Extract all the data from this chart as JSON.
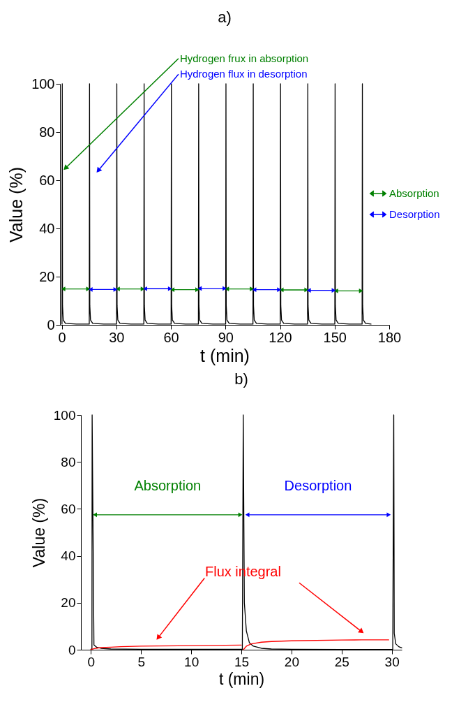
{
  "chart_data": [
    {
      "type": "line",
      "title": "a)",
      "xlabel": "t (min)",
      "ylabel": "Value (%)",
      "xlim": [
        -1,
        180
      ],
      "xticks": [
        0,
        30,
        60,
        90,
        120,
        150,
        180
      ],
      "ylim": [
        0,
        100
      ],
      "yticks": [
        0,
        20,
        40,
        60,
        80,
        100
      ],
      "legend": "right",
      "line_style": "solid",
      "annotations": [
        {
          "text": "Hydrogen frux in absorption",
          "x": 2,
          "y": 65
        },
        {
          "text": "Hydrogen flux in desorption",
          "x": 20,
          "y": 64
        }
      ],
      "series": [
        {
          "color": "#000000",
          "x": [
            0.1,
            0.25,
            0.4,
            0.8,
            2,
            8,
            15.1,
            15.25,
            15.4,
            15.8,
            17,
            23,
            30.1,
            30.25,
            30.4,
            30.8,
            32,
            38,
            45.1,
            45.25,
            45.4,
            45.8,
            47,
            53,
            60.1,
            60.25,
            60.4,
            60.8,
            62,
            68,
            75.1,
            75.25,
            75.4,
            75.8,
            77,
            83,
            90.1,
            90.25,
            90.4,
            90.8,
            92,
            98,
            105.1,
            105.25,
            105.4,
            105.8,
            107,
            113,
            120.1,
            120.25,
            120.4,
            120.8,
            122,
            128,
            135.1,
            135.25,
            135.4,
            135.8,
            137,
            143,
            150.1,
            150.25,
            150.4,
            150.8,
            152,
            158,
            165.1,
            165.25,
            165.4,
            165.8,
            167,
            170
          ],
          "values": [
            0.3,
            100,
            8,
            2,
            0.6,
            0.3,
            0.3,
            100,
            8,
            2,
            0.6,
            0.3,
            0.3,
            100,
            8,
            2,
            0.6,
            0.3,
            0.3,
            100,
            8,
            2,
            0.6,
            0.3,
            0.3,
            100,
            8,
            2,
            0.6,
            0.3,
            0.3,
            100,
            8,
            2,
            0.6,
            0.3,
            0.3,
            100,
            8,
            2,
            0.6,
            0.3,
            0.3,
            100,
            8,
            2,
            0.6,
            0.3,
            0.3,
            100,
            8,
            2,
            0.6,
            0.3,
            0.3,
            100,
            8,
            2,
            0.6,
            0.3,
            0.3,
            100,
            8,
            2,
            0.6,
            0.3,
            0.3,
            100,
            8,
            2,
            0.6,
            0.3
          ]
        },
        {
          "name": "Absorption",
          "color": "#008000",
          "marker": "triangle",
          "x": [
            0.8,
            14.5,
            null,
            30.8,
            44.5,
            null,
            60.8,
            74.5,
            null,
            90.8,
            104.5,
            null,
            120.8,
            134.5,
            null,
            150.8,
            164.5
          ],
          "values": [
            14.9,
            14.9,
            null,
            14.9,
            14.9,
            null,
            14.6,
            14.6,
            null,
            14.9,
            14.9,
            null,
            14.5,
            14.5,
            null,
            14.1,
            14.1
          ]
        },
        {
          "name": "Desorption",
          "color": "#0000ff",
          "marker": "triangle",
          "x": [
            15.8,
            29.5,
            null,
            45.8,
            59.5,
            null,
            75.8,
            89.5,
            null,
            105.8,
            119.5,
            null,
            135.8,
            149.5
          ],
          "values": [
            14.7,
            14.7,
            null,
            15,
            15,
            null,
            15.1,
            15.1,
            null,
            14.6,
            14.6,
            null,
            14.3,
            14.3
          ]
        }
      ]
    },
    {
      "type": "line",
      "title": "b)",
      "xlabel": "t (min)",
      "ylabel": "Value (%)",
      "xlim": [
        -1,
        31
      ],
      "xticks": [
        0,
        5,
        10,
        15,
        20,
        25,
        30
      ],
      "ylim": [
        0,
        100
      ],
      "yticks": [
        0,
        20,
        40,
        60,
        80,
        100
      ],
      "line_style": "solid",
      "series": [
        {
          "color": "#000000",
          "x": [
            0,
            0.1,
            0.12,
            0.3,
            0.6,
            1,
            2,
            5,
            10,
            15,
            15.1,
            15.19,
            15.3,
            15.5,
            15.8,
            16.2,
            17,
            18,
            20,
            25,
            30,
            30.1,
            30.2,
            30.25,
            30.4,
            30.7,
            31
          ],
          "values": [
            0.2,
            0.3,
            100,
            2,
            1,
            0.6,
            0.3,
            0.2,
            0.2,
            0.2,
            0.2,
            100,
            20,
            8,
            3,
            1.5,
            0.6,
            0.3,
            0.2,
            0.1,
            0.1,
            0.1,
            100,
            7,
            2.5,
            1.3,
            0.8
          ]
        },
        {
          "name": "Flux integral",
          "color": "#ff0000",
          "x": [
            0,
            0.5,
            1,
            2,
            3,
            5,
            6.7,
            15,
            null,
            15.2,
            15.5,
            16,
            17,
            18,
            20,
            25,
            27,
            29.7
          ],
          "values": [
            0.1,
            0.6,
            0.9,
            1.1,
            1.3,
            1.5,
            1.6,
            2.0,
            null,
            0,
            1.5,
            2.5,
            3.2,
            3.5,
            3.8,
            4.1,
            4.2,
            4.2
          ]
        },
        {
          "name": "Absorption",
          "color": "#008000",
          "marker": "triangle",
          "x": [
            0.4,
            14.9
          ],
          "values": [
            57.5,
            57.5
          ]
        },
        {
          "name": "Desorption",
          "color": "#0000ff",
          "marker": "triangle",
          "x": [
            15.6,
            29.7
          ],
          "values": [
            57.5,
            57.5
          ]
        }
      ]
    }
  ]
}
